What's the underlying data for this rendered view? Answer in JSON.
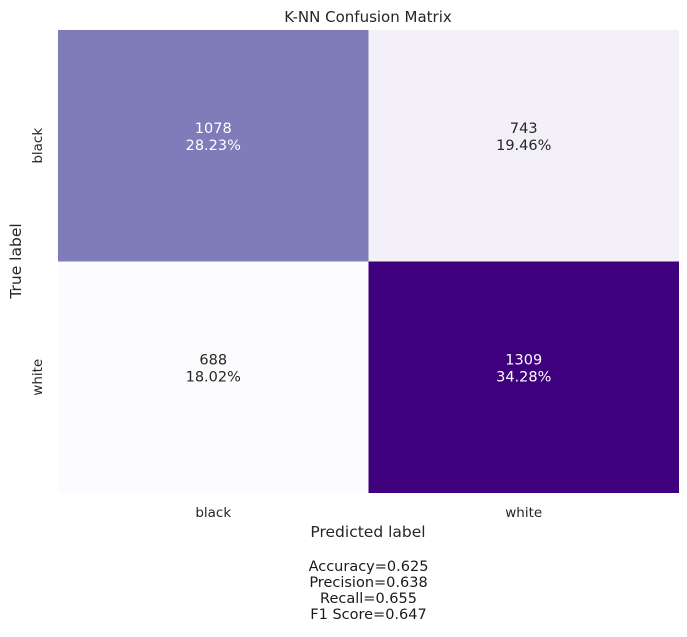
{
  "chart_data": {
    "type": "heatmap",
    "title": "K-NN Confusion Matrix",
    "xlabel": "Predicted label",
    "ylabel": "True label",
    "x_categories": [
      "black",
      "white"
    ],
    "y_categories": [
      "black",
      "white"
    ],
    "cells": [
      [
        {
          "count": "1078",
          "percent": "28.23%",
          "value": 1078
        },
        {
          "count": "743",
          "percent": "19.46%",
          "value": 743
        }
      ],
      [
        {
          "count": "688",
          "percent": "18.02%",
          "value": 688
        },
        {
          "count": "1309",
          "percent": "34.28%",
          "value": 1309
        }
      ]
    ],
    "colormap": {
      "low": "#fcfbfd",
      "high": "#3f007d"
    },
    "grid": false,
    "colorbar": false
  },
  "metrics": {
    "accuracy": "Accuracy=0.625",
    "precision": "Precision=0.638",
    "recall": "Recall=0.655",
    "f1": "F1 Score=0.647"
  }
}
